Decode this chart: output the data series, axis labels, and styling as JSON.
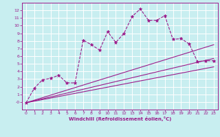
{
  "background_color": "#c8eef0",
  "grid_color": "#ffffff",
  "line_color": "#9b1a8a",
  "xlabel": "Windchill (Refroidissement éolien,°C)",
  "xlim": [
    -0.5,
    23.5
  ],
  "ylim": [
    -1,
    13
  ],
  "xticks": [
    0,
    1,
    2,
    3,
    4,
    5,
    6,
    7,
    8,
    9,
    10,
    11,
    12,
    13,
    14,
    15,
    16,
    17,
    18,
    19,
    20,
    21,
    22,
    23
  ],
  "yticks": [
    0,
    1,
    2,
    3,
    4,
    5,
    6,
    7,
    8,
    9,
    10,
    11,
    12
  ],
  "ytick_labels": [
    "-0",
    "1",
    "2",
    "3",
    "4",
    "5",
    "6",
    "7",
    "8",
    "9",
    "10",
    "11",
    "12"
  ],
  "series": [
    {
      "x": [
        0,
        1,
        2,
        3,
        4,
        5,
        6,
        7,
        8,
        9,
        10,
        11,
        12,
        13,
        14,
        15,
        16,
        17,
        18,
        19,
        20,
        21,
        22,
        23
      ],
      "y": [
        -0.1,
        1.8,
        2.9,
        3.1,
        3.5,
        2.5,
        2.5,
        8.1,
        7.5,
        6.8,
        9.2,
        7.8,
        9.0,
        11.2,
        12.2,
        10.7,
        10.7,
        11.3,
        8.2,
        8.3,
        7.6,
        5.3,
        5.4,
        5.4
      ],
      "marker": true,
      "linestyle": "--"
    },
    {
      "x": [
        0,
        23
      ],
      "y": [
        -0.1,
        7.5
      ],
      "marker": false,
      "linestyle": "-"
    },
    {
      "x": [
        0,
        23
      ],
      "y": [
        -0.1,
        5.7
      ],
      "marker": false,
      "linestyle": "-"
    },
    {
      "x": [
        0,
        23
      ],
      "y": [
        -0.1,
        4.6
      ],
      "marker": false,
      "linestyle": "-"
    }
  ]
}
